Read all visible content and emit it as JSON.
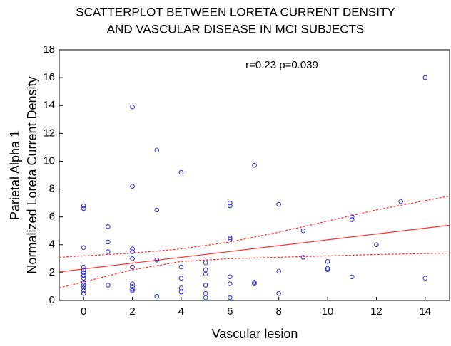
{
  "chart_data": {
    "type": "scatter",
    "title": [
      "SCATTERPLOT BETWEEN LORETA CURRENT DENSITY",
      "AND VASCULAR DISEASE IN MCI SUBJECTS"
    ],
    "annotation": "r=0.23 p=0.039",
    "x_label": "Vascular lesion",
    "y_label": [
      "Parietal Alpha 1",
      "Normalized Loreta Current Density"
    ],
    "xlim": [
      -1,
      15
    ],
    "ylim": [
      0,
      18
    ],
    "xticks": [
      0,
      2,
      4,
      6,
      8,
      10,
      12,
      14
    ],
    "yticks": [
      0,
      2,
      4,
      6,
      8,
      10,
      12,
      14,
      16,
      18
    ],
    "series": [
      {
        "color": "#3030d0",
        "x": [
          0,
          0,
          0,
          0,
          0,
          0,
          0,
          0,
          0,
          0,
          0,
          0,
          0,
          1,
          1,
          1,
          1,
          2,
          2,
          2,
          2,
          2,
          2,
          2,
          2,
          2,
          2,
          3,
          3,
          3,
          3,
          4,
          4,
          4,
          4,
          4,
          5,
          5,
          5,
          5,
          5,
          5,
          6,
          6,
          6,
          6,
          6,
          6,
          6,
          7,
          7,
          7,
          8,
          8,
          8,
          9,
          9,
          10,
          10,
          10,
          11,
          11,
          11,
          12,
          13,
          14,
          14
        ],
        "values": [
          6.8,
          6.6,
          3.8,
          2.4,
          2.2,
          2.0,
          1.8,
          1.6,
          1.3,
          1.1,
          0.9,
          0.7,
          0.5,
          5.3,
          4.2,
          3.5,
          1.1,
          13.9,
          8.2,
          3.7,
          3.5,
          3.0,
          2.4,
          1.2,
          1.0,
          0.8,
          0.7,
          10.8,
          6.5,
          2.9,
          0.3,
          9.2,
          2.4,
          1.6,
          0.9,
          0.6,
          2.7,
          2.2,
          1.9,
          1.1,
          0.5,
          0.2,
          7.0,
          6.8,
          4.5,
          4.4,
          1.7,
          1.2,
          0.2,
          9.7,
          1.3,
          1.2,
          6.9,
          2.1,
          0.5,
          5.0,
          3.1,
          2.8,
          2.3,
          2.2,
          6.0,
          5.8,
          1.7,
          4.0,
          7.1,
          16.0,
          1.6
        ]
      }
    ],
    "lines": [
      {
        "color": "#ff3030",
        "dashed": false,
        "x": [
          -1,
          15
        ],
        "values": [
          2.05,
          5.4
        ]
      },
      {
        "color": "#ff3030",
        "dashed": true,
        "x": [
          -1,
          2,
          4,
          6,
          8,
          10,
          12,
          15
        ],
        "values": [
          3.1,
          3.4,
          3.7,
          4.2,
          4.9,
          5.7,
          6.5,
          7.5
        ]
      },
      {
        "color": "#ff3030",
        "dashed": true,
        "x": [
          -1,
          2,
          4,
          6,
          8,
          10,
          12,
          15
        ],
        "values": [
          0.9,
          2.2,
          2.8,
          3.0,
          3.1,
          3.2,
          3.3,
          3.4
        ]
      }
    ]
  }
}
